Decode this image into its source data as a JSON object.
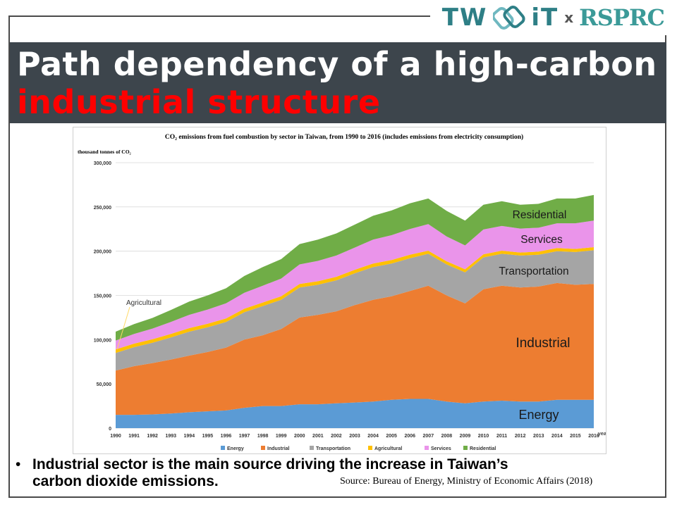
{
  "header": {
    "logo_left": "TW",
    "logo_mid": "iT",
    "logo_x": "x",
    "logo_right": "RSPRC"
  },
  "title": {
    "line1": "Path dependency of a high-carbon",
    "line2": "industrial structure"
  },
  "bullet_text": "Industrial sector is the main source driving the increase in Taiwan’s carbon dioxide emissions.",
  "source_text": "Source: Bureau of Energy, Ministry of Economic Affairs (2018)",
  "colors": {
    "energy": "#5b9bd5",
    "industrial": "#ed7d31",
    "transportation": "#a5a5a5",
    "agricultural": "#ffc000",
    "services": "#ea94ea",
    "residential": "#70ad47",
    "title_band": "#3d454c",
    "title_red": "#ff0000"
  },
  "chart_data": {
    "type": "area",
    "stacked": true,
    "title": "CO₂ emissions from fuel combustion by sector in Taiwan, from 1990 to 2016 (includes emissions from electricity consumption)",
    "ylabel": "thousand tonnes of CO₂",
    "xlabel": "year",
    "ylim": [
      0,
      300000
    ],
    "yticks": [
      0,
      50000,
      100000,
      150000,
      200000,
      250000,
      300000
    ],
    "ytick_labels": [
      "0",
      "50,000",
      "100,000",
      "150,000",
      "200,000",
      "250,000",
      "300,000"
    ],
    "grid": true,
    "legend": "bottom",
    "x": [
      "1990",
      "1991",
      "1992",
      "1993",
      "1994",
      "1995",
      "1996",
      "1997",
      "1998",
      "1999",
      "2000",
      "2001",
      "2002",
      "2003",
      "2004",
      "2005",
      "2006",
      "2007",
      "2008",
      "2009",
      "2010",
      "2011",
      "2012",
      "2013",
      "2014",
      "2015",
      "2016"
    ],
    "series": [
      {
        "name": "Energy",
        "values": [
          15000,
          15000,
          15500,
          16500,
          18000,
          19000,
          20000,
          23000,
          25000,
          25000,
          27000,
          27000,
          28000,
          29000,
          30000,
          32000,
          33000,
          33000,
          30000,
          28000,
          30000,
          31000,
          30000,
          30000,
          32000,
          32000,
          32000
        ]
      },
      {
        "name": "Industrial",
        "values": [
          50000,
          55000,
          58000,
          61000,
          64000,
          67000,
          71000,
          77000,
          80000,
          87000,
          98000,
          101000,
          104000,
          110000,
          115000,
          117000,
          122000,
          128000,
          120000,
          113000,
          127000,
          130000,
          129000,
          130000,
          132000,
          130000,
          131000
        ]
      },
      {
        "name": "Transportation",
        "values": [
          20000,
          21500,
          23000,
          25000,
          27000,
          28000,
          29000,
          31000,
          33000,
          33000,
          34000,
          34000,
          35000,
          36000,
          37000,
          37000,
          37000,
          36000,
          35000,
          35000,
          36000,
          36000,
          36000,
          36000,
          36000,
          37000,
          38000
        ]
      },
      {
        "name": "Agricultural",
        "values": [
          4000,
          4000,
          4000,
          4000,
          4000,
          4000,
          4000,
          4000,
          4000,
          4000,
          4000,
          4000,
          4000,
          4000,
          4000,
          4000,
          4000,
          3500,
          3500,
          3500,
          3500,
          3500,
          3500,
          3500,
          3500,
          3500,
          3500
        ]
      },
      {
        "name": "Services",
        "values": [
          10000,
          11000,
          12000,
          13500,
          15000,
          16000,
          17000,
          18000,
          19000,
          20000,
          22000,
          23000,
          24000,
          25000,
          27000,
          28000,
          29000,
          30000,
          28000,
          27000,
          28000,
          28000,
          27000,
          27000,
          28000,
          29000,
          30000
        ]
      },
      {
        "name": "Residential",
        "values": [
          10000,
          11000,
          12000,
          13500,
          15000,
          16000,
          17000,
          19000,
          21000,
          22000,
          23000,
          24000,
          25000,
          26000,
          27000,
          28000,
          29000,
          29000,
          29000,
          28000,
          28000,
          28000,
          27000,
          27000,
          28000,
          28000,
          29000
        ]
      }
    ],
    "annotations": [
      {
        "text": "Agricultural",
        "points_to": "1990"
      },
      {
        "text": "Residential"
      },
      {
        "text": "Services"
      },
      {
        "text": "Transportation"
      },
      {
        "text": "Industrial"
      },
      {
        "text": "Energy"
      }
    ]
  }
}
